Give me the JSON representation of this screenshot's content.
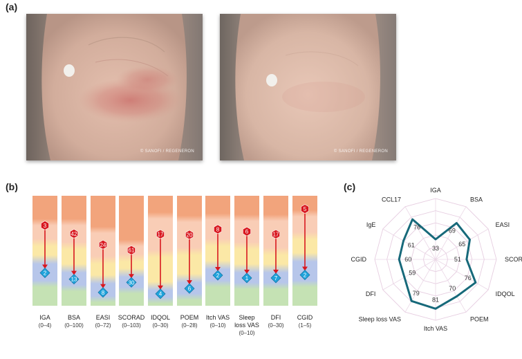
{
  "panels": {
    "a": "(a)",
    "b": "(b)",
    "c": "(c)"
  },
  "photos": {
    "credit_left": "© SANOFI / REGENERON",
    "credit_right": "© SANOFI / REGENERON"
  },
  "chart_data": [
    {
      "type": "bar",
      "panel": "(b)",
      "categories": [
        {
          "name": [
            "IGA"
          ],
          "range": "(0–4)",
          "from": 3,
          "to": 2
        },
        {
          "name": [
            "BSA"
          ],
          "range": "(0–100)",
          "from": 42,
          "to": 13
        },
        {
          "name": [
            "EASI"
          ],
          "range": "(0–72)",
          "from": 24,
          "to": 8
        },
        {
          "name": [
            "SCORAD"
          ],
          "range": "(0–103)",
          "from": 61,
          "to": 30
        },
        {
          "name": [
            "IDQOL"
          ],
          "range": "(0–30)",
          "from": 17,
          "to": 4
        },
        {
          "name": [
            "POEM"
          ],
          "range": "(0–28)",
          "from": 20,
          "to": 6
        },
        {
          "name": [
            "Itch VAS"
          ],
          "range": "(0–10)",
          "from": 8,
          "to": 2
        },
        {
          "name": [
            "Sleep",
            "loss VAS"
          ],
          "range": "(0–10)",
          "from": 6,
          "to": 1
        },
        {
          "name": [
            "DFI"
          ],
          "range": "(0–30)",
          "from": 17,
          "to": 7
        },
        {
          "name": [
            "CGID"
          ],
          "range": "(1–5)",
          "from": 5,
          "to": 2
        }
      ],
      "colors": {
        "before": "#d8171e",
        "after": "#1fa3dc",
        "arrow": "#d8171e"
      }
    },
    {
      "type": "radar",
      "panel": "(c)",
      "axes": [
        "IGA",
        "BSA",
        "EASI",
        "SCORAD",
        "IDQOL",
        "POEM",
        "Itch VAS",
        "Sleep loss VAS",
        "DFI",
        "CGID",
        "IgE",
        "CCL17"
      ],
      "values": [
        33,
        69,
        65,
        51,
        76,
        70,
        81,
        79,
        59,
        60,
        61,
        76
      ],
      "range": [
        0,
        100
      ],
      "line_color": "#17697a"
    }
  ]
}
